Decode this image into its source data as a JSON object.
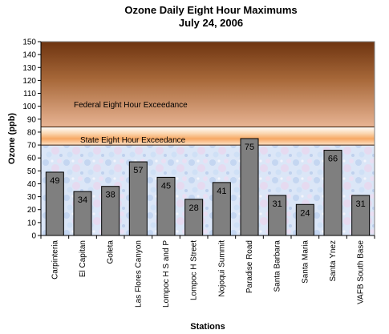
{
  "chart_data": {
    "type": "bar",
    "title": "Ozone Daily Eight Hour Maximums",
    "subtitle": "July 24, 2006",
    "xlabel": "Stations",
    "ylabel": "Ozone (ppb)",
    "ylim": [
      0,
      150
    ],
    "yticks": [
      0,
      10,
      20,
      30,
      40,
      50,
      60,
      70,
      80,
      90,
      100,
      110,
      120,
      130,
      140,
      150
    ],
    "categories": [
      "Carpinteria",
      "El Capitan",
      "Goleta",
      "Las Flores Canyon",
      "Lompoc H S and P",
      "Lompoc H Street",
      "Nojoqui Summit",
      "Paradise Road",
      "Santa Barbara",
      "Santa Maria",
      "Santa Ynez",
      "VAFB South Base"
    ],
    "values": [
      49,
      34,
      38,
      57,
      45,
      28,
      41,
      75,
      31,
      24,
      66,
      31
    ],
    "data_labels": true,
    "bands": [
      {
        "label": "Federal Eight Hour Exceedance",
        "from": 84,
        "to": 150
      },
      {
        "label": "State Eight Hour Exceedance",
        "from": 70,
        "to": 84
      }
    ],
    "grid": false,
    "legend": "none",
    "colors": {
      "bar": "#7f7f7f",
      "bar_edge": "#000000"
    }
  }
}
